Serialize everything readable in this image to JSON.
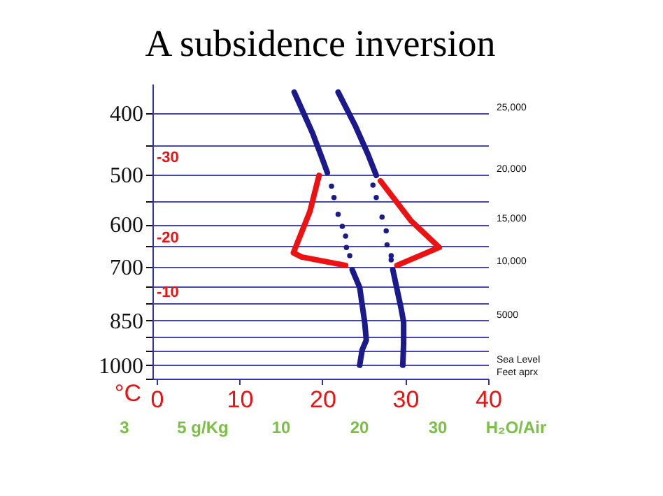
{
  "chart_data": {
    "type": "line",
    "title": "A subsidence inversion",
    "xlabel": "°C",
    "xlim": [
      -0.5,
      40
    ],
    "xticks": [
      0,
      10,
      20,
      30,
      40
    ],
    "ylim": [
      1050,
      360
    ],
    "log": "y",
    "grid": "y",
    "marker": "none",
    "yticks": [
      400,
      {
        "value": 450,
        "label": null
      },
      500,
      {
        "value": 550,
        "label": null
      },
      600,
      {
        "value": 650,
        "label": null
      },
      700,
      {
        "value": 750,
        "label": null
      },
      {
        "value": 800,
        "label": null
      },
      850,
      {
        "value": 900,
        "label": null
      },
      {
        "value": 950,
        "label": null
      },
      1000,
      {
        "value": 1050,
        "label": null
      }
    ],
    "series": [
      {
        "color": "#1a1a8c",
        "x": [
          16.6,
          18.8,
          20.0,
          20.6,
          null,
          23.6,
          24.5,
          25.1,
          25.3,
          24.8,
          24.5
        ],
        "values": [
          371,
          430,
          473,
          497,
          null,
          707,
          754,
          855,
          913,
          946,
          1000
        ]
      },
      {
        "color": "#1a1a8c",
        "x": [
          21.9,
          24.0,
          25.5,
          26.5,
          null,
          28.5,
          29.5,
          29.8,
          29.8,
          29.7
        ],
        "values": [
          371,
          420,
          465,
          502,
          null,
          707,
          814,
          855,
          923,
          1000
        ]
      },
      {
        "type": "scatter",
        "color": "#1a1a8c",
        "x": [
          21.1,
          21.4,
          21.9,
          22.4,
          22.8,
          22.9,
          23.3
        ],
        "values": [
          522,
          544,
          578,
          604,
          626,
          652,
          672
        ]
      },
      {
        "type": "scatter",
        "color": "#1a1a8c",
        "x": [
          26.1,
          26.5,
          27.2,
          27.7,
          27.8,
          28.3,
          28.3
        ],
        "values": [
          520,
          544,
          584,
          614,
          646,
          672,
          682
        ]
      },
      {
        "color": "#ee1111",
        "x": [
          19.6,
          18.5,
          16.5,
          17.5,
          22.8,
          null,
          29.0,
          34.1,
          30.7,
          27.0
        ],
        "values": [
          502,
          572,
          665,
          675,
          696,
          null,
          696,
          652,
          592,
          512
        ]
      }
    ],
    "annotations": [
      "-30",
      "-20",
      "-10",
      "25,000",
      "20,000",
      "15,000",
      "10,000",
      "5000",
      "Sea Level\nFeet aprx",
      "3",
      "5 g/Kg",
      "10",
      "20",
      "30",
      "H₂O/Air"
    ]
  }
}
